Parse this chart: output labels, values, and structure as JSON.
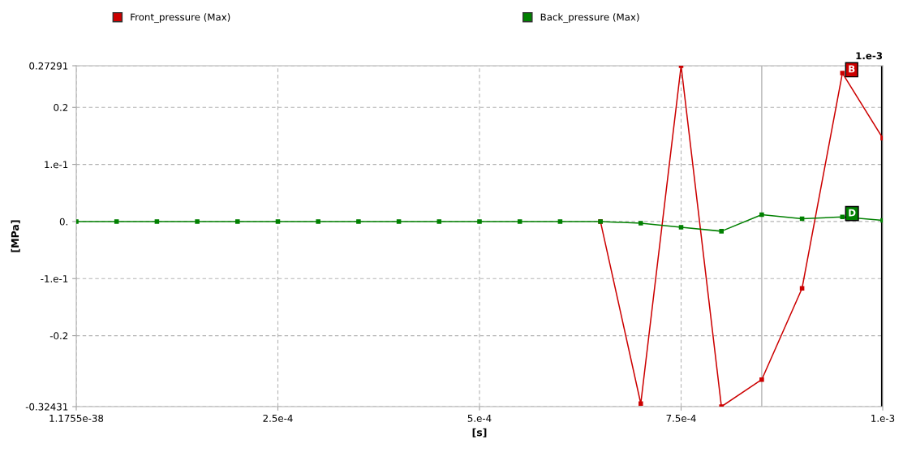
{
  "chart_data": {
    "type": "line",
    "xlabel": "[s]",
    "ylabel": "[MPa]",
    "x": [
      0,
      5e-05,
      0.0001,
      0.00015,
      0.0002,
      0.00025,
      0.0003,
      0.00035,
      0.0004,
      0.00045,
      0.0005,
      0.00055,
      0.0006,
      0.00065,
      0.0007,
      0.00075,
      0.0008,
      0.00085,
      0.0009,
      0.00095,
      0.001
    ],
    "series": [
      {
        "name": "Front_pressure (Max)",
        "color": "#cc0000",
        "values": [
          null,
          null,
          null,
          null,
          null,
          null,
          null,
          null,
          null,
          null,
          null,
          null,
          null,
          0,
          -0.319,
          0.27291,
          -0.32431,
          -0.277,
          -0.117,
          0.26,
          0.146
        ]
      },
      {
        "name": "Back_pressure (Max)",
        "color": "#008000",
        "values": [
          0,
          0,
          0,
          0,
          0,
          0,
          0,
          0,
          0,
          0,
          0,
          0,
          0,
          0,
          -0.003,
          -0.01,
          -0.017,
          0.012,
          0.005,
          0.008,
          0.002
        ]
      }
    ],
    "xlim": [
      0,
      0.001
    ],
    "xticks": [
      {
        "value": 0,
        "label": "1.1755e-38"
      },
      {
        "value": 0.00025,
        "label": "2.5e-4"
      },
      {
        "value": 0.0005,
        "label": "5.e-4"
      },
      {
        "value": 0.00075,
        "label": "7.5e-4"
      },
      {
        "value": 0.001,
        "label": "1.e-3"
      }
    ],
    "ylim": [
      -0.32431,
      0.27291
    ],
    "yticks": [
      -0.32431,
      -0.2,
      {
        "value": -0.1,
        "label": "-1.e-1"
      },
      {
        "value": 0,
        "label": "0."
      },
      {
        "value": 0.1,
        "label": "1.e-1"
      },
      0.2,
      0.27291
    ],
    "ref_lines": [
      {
        "axis": "x",
        "value": 0.00085,
        "label": null,
        "color": "#b4b4b4",
        "line_style": "solid"
      },
      {
        "axis": "x",
        "value": 0.001,
        "label": "1.e-3",
        "color": "#000000",
        "line_style": "solid"
      }
    ],
    "annotations": [
      {
        "text": "B",
        "x": 0.00095,
        "y": 0.26
      },
      {
        "text": "D",
        "x": 0.00095,
        "y": 0.008
      }
    ],
    "grid": true,
    "legend": "top",
    "marker": "square",
    "line_style": "solid"
  }
}
